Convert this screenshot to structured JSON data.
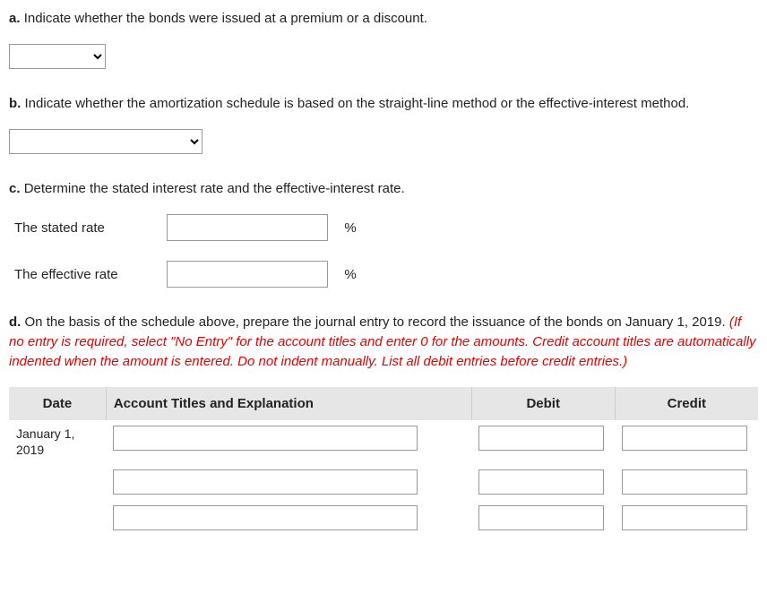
{
  "qa": {
    "prompt_prefix": "a.",
    "prompt": "Indicate whether the bonds were issued at a premium or a discount.",
    "select_value": ""
  },
  "qb": {
    "prompt_prefix": "b.",
    "prompt": "Indicate whether the amortization schedule is based on the straight-line method or the effective-interest method.",
    "select_value": ""
  },
  "qc": {
    "prompt_prefix": "c.",
    "prompt": "Determine the stated interest rate and the effective-interest rate.",
    "rows": [
      {
        "label": "The stated rate",
        "value": "",
        "unit": "%"
      },
      {
        "label": "The effective rate",
        "value": "",
        "unit": "%"
      }
    ]
  },
  "qd": {
    "prompt_prefix": "d.",
    "black_part": "On the basis of the schedule above, prepare the journal entry to record the issuance of the bonds on January 1, 2019.",
    "red_hook": "(If no entry is required, select \"No Entry\" for the account titles and enter 0 for the amounts. Credit account titles are automatically indented when the amount is entered. Do not indent manually. List all debit entries before credit entries.)",
    "columns": {
      "date": "Date",
      "acct": "Account Titles and Explanation",
      "debit": "Debit",
      "credit": "Credit"
    },
    "date_value": "January 1, 2019",
    "rows": [
      {
        "acct": "",
        "debit": "",
        "credit": ""
      },
      {
        "acct": "",
        "debit": "",
        "credit": ""
      },
      {
        "acct": "",
        "debit": "",
        "credit": ""
      }
    ]
  },
  "style": {
    "header_bg": "#e6e6e6",
    "border_color": "#999999",
    "red": "#e60000"
  }
}
